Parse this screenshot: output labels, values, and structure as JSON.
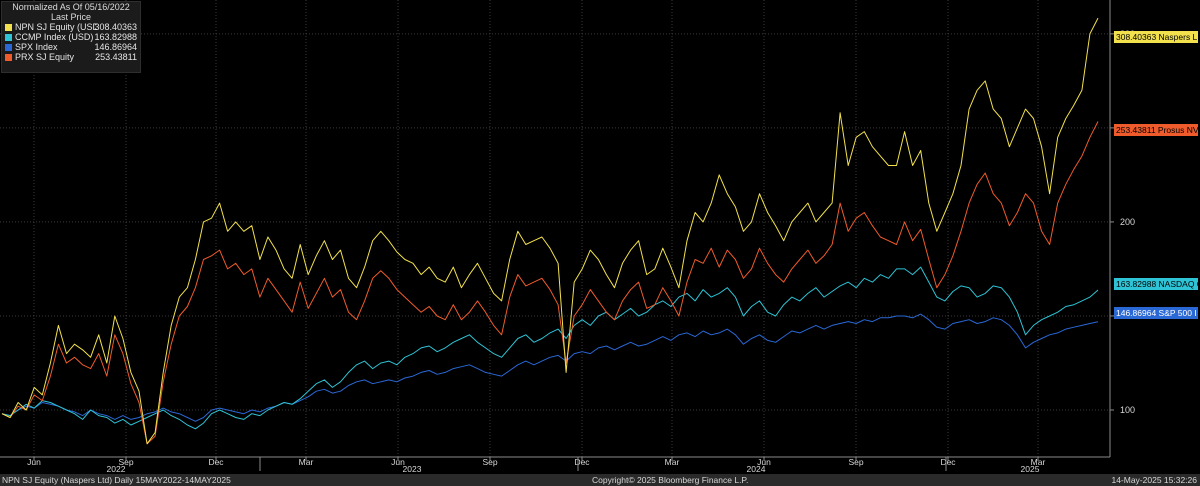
{
  "legend": {
    "title_line1": "Normalized As Of 05/16/2022",
    "title_line2": "Last Price"
  },
  "footer": {
    "left": "NPN SJ Equity (Naspers Ltd)  Daily 15MAY2022-14MAY2025",
    "center": "Copyright© 2025 Bloomberg Finance L.P.",
    "right": "14-May-2025 15:32:26"
  },
  "chart_data": {
    "type": "line",
    "title": "Normalized As Of 05/16/2022",
    "subtitle": "Last Price",
    "ylim": [
      75,
      318
    ],
    "y_ticks": [
      100,
      150,
      200,
      250,
      300
    ],
    "grid": true,
    "legend_position": "top-left",
    "x_tick_labels": [
      "Jun",
      "Sep",
      "Dec",
      "Mar",
      "Jun",
      "Sep",
      "Dec",
      "Mar",
      "Jun",
      "Sep",
      "Dec",
      "Mar"
    ],
    "year_labels": [
      "2022",
      "2023",
      "2024",
      "2025"
    ],
    "series": [
      {
        "name": "NPN SJ Equity (USD)",
        "value": "308.40363",
        "tag": "308.40363 Naspers L",
        "color": "#f2e14c",
        "values": [
          98,
          96,
          104,
          100,
          112,
          108,
          125,
          145,
          130,
          135,
          132,
          128,
          140,
          125,
          150,
          138,
          120,
          110,
          82,
          88,
          120,
          145,
          160,
          165,
          180,
          200,
          202,
          210,
          195,
          200,
          195,
          198,
          180,
          192,
          185,
          175,
          170,
          188,
          172,
          182,
          190,
          180,
          185,
          170,
          165,
          176,
          190,
          195,
          190,
          184,
          180,
          178,
          172,
          176,
          170,
          168,
          176,
          165,
          172,
          178,
          170,
          162,
          158,
          180,
          195,
          188,
          190,
          192,
          186,
          178,
          120,
          168,
          175,
          185,
          180,
          172,
          165,
          178,
          185,
          190,
          172,
          175,
          186,
          176,
          165,
          190,
          205,
          200,
          210,
          225,
          215,
          208,
          195,
          200,
          215,
          205,
          198,
          190,
          200,
          205,
          210,
          200,
          205,
          210,
          258,
          230,
          245,
          248,
          240,
          235,
          230,
          230,
          248,
          230,
          238,
          210,
          195,
          205,
          215,
          230,
          260,
          270,
          275,
          260,
          255,
          240,
          250,
          260,
          255,
          240,
          215,
          245,
          255,
          262,
          270,
          300,
          308.4
        ]
      },
      {
        "name": "PRX SJ Equity",
        "value": "253.43811",
        "tag": "253.43811 Prosus NV",
        "color": "#ef5b2b",
        "values": [
          98,
          96,
          102,
          100,
          108,
          105,
          118,
          135,
          125,
          128,
          124,
          122,
          130,
          118,
          140,
          130,
          114,
          104,
          82,
          86,
          115,
          135,
          150,
          155,
          165,
          180,
          182,
          185,
          175,
          178,
          172,
          175,
          160,
          170,
          164,
          158,
          152,
          168,
          154,
          162,
          170,
          160,
          164,
          152,
          148,
          158,
          170,
          174,
          170,
          164,
          160,
          156,
          152,
          155,
          150,
          148,
          156,
          148,
          152,
          158,
          152,
          145,
          140,
          160,
          172,
          166,
          168,
          170,
          164,
          156,
          125,
          150,
          156,
          164,
          158,
          152,
          148,
          158,
          164,
          168,
          154,
          156,
          165,
          158,
          150,
          168,
          180,
          178,
          186,
          176,
          185,
          180,
          170,
          175,
          186,
          178,
          172,
          168,
          175,
          180,
          185,
          178,
          182,
          188,
          210,
          195,
          202,
          205,
          198,
          192,
          190,
          188,
          200,
          190,
          196,
          180,
          165,
          172,
          182,
          195,
          210,
          220,
          226,
          215,
          210,
          198,
          205,
          215,
          210,
          195,
          188,
          210,
          220,
          228,
          235,
          245,
          253.4
        ]
      },
      {
        "name": "CCMP Index (USD)",
        "value": "163.82988",
        "tag": "163.82988 NASDAQ Co",
        "color": "#2ec4d6",
        "values": [
          98,
          97,
          100,
          103,
          101,
          105,
          104,
          102,
          100,
          98,
          95,
          100,
          97,
          96,
          93,
          95,
          92,
          94,
          96,
          98,
          100,
          97,
          95,
          92,
          90,
          93,
          98,
          100,
          98,
          96,
          95,
          98,
          97,
          100,
          102,
          104,
          103,
          106,
          110,
          114,
          116,
          112,
          115,
          120,
          124,
          126,
          122,
          125,
          126,
          124,
          128,
          130,
          133,
          134,
          131,
          133,
          136,
          138,
          140,
          136,
          133,
          130,
          128,
          133,
          138,
          140,
          136,
          138,
          141,
          143,
          138,
          145,
          148,
          145,
          150,
          152,
          148,
          151,
          154,
          150,
          152,
          156,
          158,
          155,
          160,
          162,
          158,
          164,
          160,
          162,
          165,
          160,
          150,
          155,
          158,
          152,
          150,
          156,
          160,
          158,
          162,
          165,
          160,
          163,
          166,
          168,
          165,
          170,
          168,
          172,
          170,
          175,
          175,
          172,
          176,
          168,
          160,
          158,
          163,
          166,
          165,
          160,
          162,
          166,
          165,
          160,
          152,
          140,
          145,
          148,
          150,
          152,
          155,
          156,
          158,
          160,
          163.8
        ]
      },
      {
        "name": "SPX Index",
        "value": "146.86964",
        "tag": "146.86964 S&P 500 I",
        "color": "#2a68d6",
        "values": [
          98,
          97,
          100,
          102,
          101,
          104,
          103,
          102,
          100,
          99,
          97,
          100,
          98,
          97,
          95,
          97,
          95,
          96,
          98,
          99,
          101,
          99,
          98,
          96,
          94,
          96,
          100,
          101,
          100,
          99,
          98,
          100,
          99,
          101,
          102,
          104,
          103,
          105,
          107,
          110,
          111,
          109,
          110,
          113,
          115,
          116,
          114,
          115,
          116,
          115,
          117,
          118,
          120,
          121,
          119,
          120,
          122,
          123,
          124,
          122,
          120,
          119,
          118,
          121,
          124,
          126,
          124,
          126,
          128,
          129,
          126,
          130,
          131,
          130,
          133,
          134,
          132,
          134,
          136,
          134,
          135,
          137,
          139,
          137,
          140,
          141,
          139,
          142,
          140,
          141,
          143,
          140,
          135,
          138,
          140,
          137,
          136,
          139,
          142,
          141,
          143,
          145,
          143,
          145,
          146,
          147,
          146,
          148,
          147,
          149,
          149,
          150,
          150,
          149,
          151,
          148,
          144,
          143,
          146,
          147,
          148,
          146,
          147,
          149,
          148,
          145,
          140,
          133,
          136,
          138,
          140,
          141,
          143,
          144,
          145,
          146,
          146.9
        ]
      }
    ]
  }
}
